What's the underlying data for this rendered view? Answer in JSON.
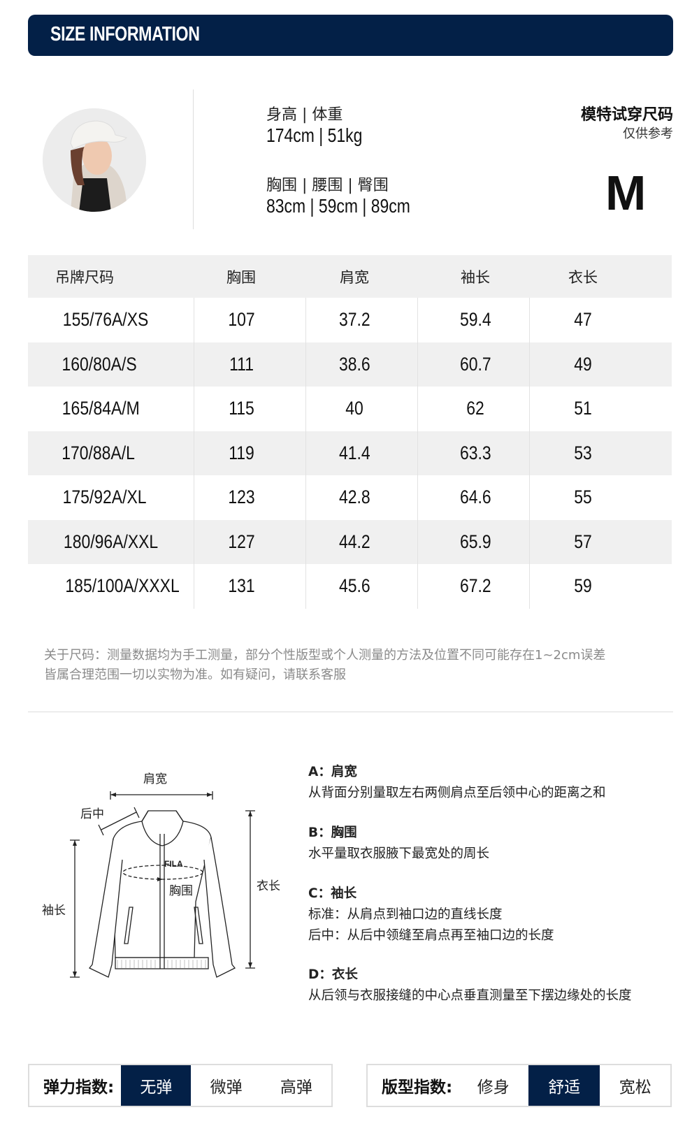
{
  "header": {
    "title": "SIZE INFORMATION"
  },
  "model": {
    "height_weight_label": "身高 | 体重",
    "height_weight_value": "174cm | 51kg",
    "measure_label": "胸围 | 腰围 | 臀围",
    "measure_value": "83cm | 59cm | 89cm",
    "size_title": "模特试穿尺码",
    "size_note": "仅供参考",
    "size": "M"
  },
  "table": {
    "headers": [
      "吊牌尺码",
      "胸围",
      "肩宽",
      "袖长",
      "衣长"
    ],
    "rows": [
      [
        "155/76A/XS",
        "107",
        "37.2",
        "59.4",
        "47"
      ],
      [
        "160/80A/S",
        "111",
        "38.6",
        "60.7",
        "49"
      ],
      [
        "165/84A/M",
        "115",
        "40",
        "62",
        "51"
      ],
      [
        "170/88A/L",
        "119",
        "41.4",
        "63.3",
        "53"
      ],
      [
        "175/92A/XL",
        "123",
        "42.8",
        "64.6",
        "55"
      ],
      [
        "180/96A/XXL",
        "127",
        "44.2",
        "65.9",
        "57"
      ],
      [
        "185/100A/XXXL",
        "131",
        "45.6",
        "67.2",
        "59"
      ]
    ]
  },
  "note": {
    "line1": "关于尺码：测量数据均为手工测量，部分个性版型或个人测量的方法及位置不同可能存在1~2cm误差",
    "line2": "皆属合理范围一切以实物为准。如有疑问，请联系客服"
  },
  "diagram": {
    "shoulder": "肩宽",
    "back_center": "后中",
    "chest": "胸围",
    "sleeve": "袖长",
    "length": "衣长",
    "logo": "FILA"
  },
  "descriptions": [
    {
      "title": "A：肩宽",
      "lines": [
        "从背面分别量取左右两侧肩点至后领中心的距离之和"
      ]
    },
    {
      "title": "B：胸围",
      "lines": [
        "水平量取衣服腋下最宽处的周长"
      ]
    },
    {
      "title": "C：袖长",
      "lines": [
        "标准：从肩点到袖口边的直线长度",
        "后中：从后中领缝至肩点再至袖口边的长度"
      ]
    },
    {
      "title": "D：衣长",
      "lines": [
        "从后领与衣服接缝的中心点垂直测量至下摆边缘处的长度"
      ]
    }
  ],
  "elasticity": {
    "label": "弹力指数:",
    "options": [
      "无弹",
      "微弹",
      "高弹"
    ],
    "selected": "无弹"
  },
  "fit": {
    "label": "版型指数:",
    "options": [
      "修身",
      "舒适",
      "宽松"
    ],
    "selected": "舒适"
  },
  "colors": {
    "brand": "#032047",
    "row_alt": "#f0f0f0"
  }
}
